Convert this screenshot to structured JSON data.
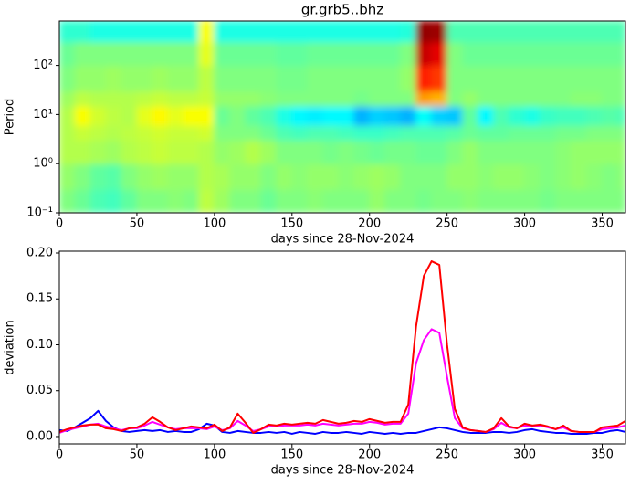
{
  "chart_data": [
    {
      "type": "heatmap",
      "title": "gr.grb5..bhz",
      "xlabel": "days since 28-Nov-2024",
      "ylabel": "Period",
      "colormap": "jet",
      "ylog": true,
      "x_edges": [
        0,
        10,
        20,
        30,
        40,
        50,
        60,
        70,
        80,
        90,
        100,
        110,
        120,
        130,
        140,
        150,
        160,
        170,
        180,
        190,
        200,
        210,
        220,
        230,
        240,
        250,
        260,
        270,
        280,
        290,
        300,
        310,
        320,
        330,
        340,
        350,
        360,
        365
      ],
      "y_edges": [
        0.1,
        0.3,
        1,
        3,
        6,
        15,
        30,
        100,
        300,
        800
      ],
      "values": [
        [
          0.5,
          0.48,
          0.45,
          0.44,
          0.47,
          0.5,
          0.5,
          0.51,
          0.5,
          0.56,
          0.53,
          0.5,
          0.5,
          0.48,
          0.5,
          0.5,
          0.51,
          0.5,
          0.5,
          0.5,
          0.52,
          0.5,
          0.5,
          0.49,
          0.5,
          0.5,
          0.51,
          0.5,
          0.5,
          0.5,
          0.5,
          0.49,
          0.5,
          0.5,
          0.5,
          0.5,
          0.5
        ],
        [
          0.52,
          0.5,
          0.47,
          0.46,
          0.5,
          0.52,
          0.53,
          0.52,
          0.52,
          0.55,
          0.54,
          0.52,
          0.52,
          0.5,
          0.52,
          0.51,
          0.52,
          0.52,
          0.51,
          0.52,
          0.53,
          0.52,
          0.5,
          0.5,
          0.5,
          0.52,
          0.52,
          0.51,
          0.52,
          0.52,
          0.51,
          0.5,
          0.51,
          0.52,
          0.51,
          0.5,
          0.51
        ],
        [
          0.55,
          0.55,
          0.54,
          0.53,
          0.55,
          0.56,
          0.57,
          0.56,
          0.56,
          0.55,
          0.52,
          0.53,
          0.55,
          0.53,
          0.5,
          0.5,
          0.5,
          0.49,
          0.5,
          0.49,
          0.48,
          0.49,
          0.49,
          0.48,
          0.48,
          0.5,
          0.52,
          0.5,
          0.5,
          0.5,
          0.5,
          0.5,
          0.51,
          0.52,
          0.52,
          0.52,
          0.52
        ],
        [
          0.55,
          0.57,
          0.56,
          0.55,
          0.56,
          0.57,
          0.58,
          0.57,
          0.57,
          0.58,
          0.5,
          0.5,
          0.5,
          0.48,
          0.45,
          0.44,
          0.45,
          0.45,
          0.44,
          0.43,
          0.43,
          0.44,
          0.45,
          0.45,
          0.45,
          0.46,
          0.48,
          0.47,
          0.47,
          0.48,
          0.48,
          0.48,
          0.49,
          0.49,
          0.5,
          0.5,
          0.5
        ],
        [
          0.55,
          0.62,
          0.58,
          0.56,
          0.55,
          0.6,
          0.63,
          0.6,
          0.62,
          0.62,
          0.48,
          0.5,
          0.47,
          0.45,
          0.4,
          0.37,
          0.36,
          0.37,
          0.37,
          0.3,
          0.33,
          0.32,
          0.3,
          0.38,
          0.33,
          0.32,
          0.47,
          0.37,
          0.45,
          0.42,
          0.4,
          0.43,
          0.44,
          0.44,
          0.45,
          0.46,
          0.45
        ],
        [
          0.53,
          0.56,
          0.55,
          0.55,
          0.55,
          0.56,
          0.57,
          0.56,
          0.56,
          0.57,
          0.52,
          0.52,
          0.52,
          0.51,
          0.5,
          0.5,
          0.5,
          0.5,
          0.5,
          0.49,
          0.5,
          0.5,
          0.5,
          0.72,
          0.7,
          0.5,
          0.52,
          0.5,
          0.5,
          0.5,
          0.5,
          0.5,
          0.5,
          0.51,
          0.51,
          0.5,
          0.5
        ],
        [
          0.5,
          0.52,
          0.52,
          0.53,
          0.52,
          0.52,
          0.53,
          0.52,
          0.52,
          0.56,
          0.5,
          0.5,
          0.5,
          0.5,
          0.49,
          0.49,
          0.5,
          0.5,
          0.5,
          0.5,
          0.5,
          0.5,
          0.52,
          0.85,
          0.82,
          0.5,
          0.5,
          0.5,
          0.5,
          0.5,
          0.5,
          0.5,
          0.5,
          0.5,
          0.5,
          0.5,
          0.5
        ],
        [
          0.48,
          0.5,
          0.5,
          0.5,
          0.5,
          0.5,
          0.5,
          0.5,
          0.5,
          0.6,
          0.48,
          0.48,
          0.48,
          0.48,
          0.47,
          0.47,
          0.48,
          0.48,
          0.48,
          0.48,
          0.48,
          0.48,
          0.5,
          0.93,
          0.9,
          0.5,
          0.48,
          0.48,
          0.48,
          0.48,
          0.48,
          0.48,
          0.48,
          0.48,
          0.48,
          0.48,
          0.48
        ],
        [
          0.42,
          0.42,
          0.4,
          0.4,
          0.4,
          0.4,
          0.4,
          0.4,
          0.4,
          0.62,
          0.4,
          0.4,
          0.4,
          0.4,
          0.4,
          0.4,
          0.4,
          0.4,
          0.4,
          0.4,
          0.4,
          0.4,
          0.41,
          0.98,
          0.97,
          0.45,
          0.45,
          0.45,
          0.45,
          0.45,
          0.45,
          0.45,
          0.45,
          0.45,
          0.45,
          0.45,
          0.45
        ]
      ],
      "xlim": [
        0,
        365
      ],
      "xticks": [
        0,
        50,
        100,
        150,
        200,
        250,
        300,
        350
      ],
      "ylim": [
        0.1,
        800
      ],
      "yticks": [
        {
          "value": 0.1,
          "label": "10⁻¹"
        },
        {
          "value": 1,
          "label": "10⁰"
        },
        {
          "value": 10,
          "label": "10¹"
        },
        {
          "value": 100,
          "label": "10²"
        }
      ]
    },
    {
      "type": "line",
      "xlabel": "days since 28-Nov-2024",
      "ylabel": "deviation",
      "x": [
        0,
        5,
        10,
        15,
        20,
        25,
        30,
        35,
        40,
        45,
        50,
        55,
        60,
        65,
        70,
        75,
        80,
        85,
        90,
        95,
        100,
        105,
        110,
        115,
        120,
        125,
        130,
        135,
        140,
        145,
        150,
        155,
        160,
        165,
        170,
        175,
        180,
        185,
        190,
        195,
        200,
        205,
        210,
        215,
        220,
        225,
        230,
        235,
        240,
        245,
        250,
        255,
        260,
        265,
        270,
        275,
        280,
        285,
        290,
        295,
        300,
        305,
        310,
        315,
        320,
        325,
        330,
        335,
        340,
        345,
        350,
        355,
        360,
        365
      ],
      "series": [
        {
          "color": "#0000ff",
          "values": [
            0.007,
            0.006,
            0.01,
            0.015,
            0.02,
            0.028,
            0.017,
            0.01,
            0.006,
            0.005,
            0.006,
            0.007,
            0.006,
            0.007,
            0.005,
            0.006,
            0.005,
            0.005,
            0.008,
            0.014,
            0.012,
            0.005,
            0.004,
            0.006,
            0.005,
            0.004,
            0.004,
            0.005,
            0.004,
            0.005,
            0.003,
            0.005,
            0.004,
            0.003,
            0.005,
            0.004,
            0.004,
            0.005,
            0.004,
            0.003,
            0.005,
            0.004,
            0.003,
            0.004,
            0.003,
            0.004,
            0.004,
            0.006,
            0.008,
            0.01,
            0.009,
            0.007,
            0.005,
            0.004,
            0.004,
            0.004,
            0.005,
            0.005,
            0.004,
            0.005,
            0.007,
            0.008,
            0.006,
            0.005,
            0.004,
            0.004,
            0.003,
            0.003,
            0.003,
            0.004,
            0.004,
            0.006,
            0.007,
            0.005
          ]
        },
        {
          "color": "#ff00ff",
          "values": [
            0.004,
            0.007,
            0.009,
            0.011,
            0.013,
            0.014,
            0.011,
            0.009,
            0.007,
            0.009,
            0.009,
            0.012,
            0.016,
            0.013,
            0.01,
            0.008,
            0.009,
            0.009,
            0.009,
            0.008,
            0.011,
            0.007,
            0.009,
            0.017,
            0.012,
            0.006,
            0.008,
            0.011,
            0.011,
            0.012,
            0.012,
            0.012,
            0.013,
            0.012,
            0.014,
            0.013,
            0.012,
            0.013,
            0.014,
            0.014,
            0.016,
            0.015,
            0.013,
            0.014,
            0.014,
            0.025,
            0.08,
            0.105,
            0.117,
            0.113,
            0.065,
            0.02,
            0.009,
            0.007,
            0.006,
            0.005,
            0.008,
            0.015,
            0.01,
            0.009,
            0.012,
            0.011,
            0.012,
            0.01,
            0.008,
            0.01,
            0.006,
            0.005,
            0.005,
            0.005,
            0.008,
            0.009,
            0.01,
            0.012
          ]
        },
        {
          "color": "#ff0000",
          "values": [
            0.005,
            0.008,
            0.01,
            0.012,
            0.013,
            0.013,
            0.009,
            0.008,
            0.006,
            0.009,
            0.01,
            0.014,
            0.021,
            0.016,
            0.01,
            0.007,
            0.009,
            0.011,
            0.01,
            0.009,
            0.013,
            0.006,
            0.01,
            0.025,
            0.015,
            0.004,
            0.008,
            0.013,
            0.012,
            0.014,
            0.013,
            0.014,
            0.015,
            0.014,
            0.018,
            0.016,
            0.014,
            0.015,
            0.017,
            0.016,
            0.019,
            0.017,
            0.015,
            0.016,
            0.016,
            0.035,
            0.12,
            0.175,
            0.191,
            0.187,
            0.1,
            0.03,
            0.01,
            0.007,
            0.006,
            0.005,
            0.009,
            0.02,
            0.011,
            0.009,
            0.014,
            0.012,
            0.013,
            0.011,
            0.008,
            0.012,
            0.006,
            0.005,
            0.005,
            0.005,
            0.01,
            0.011,
            0.012,
            0.017
          ]
        }
      ],
      "xlim": [
        0,
        365
      ],
      "xticks": [
        0,
        50,
        100,
        150,
        200,
        250,
        300,
        350
      ],
      "ylim": [
        -0.008,
        0.202
      ],
      "yticks": [
        {
          "value": 0,
          "label": "0.00"
        },
        {
          "value": 0.05,
          "label": "0.05"
        },
        {
          "value": 0.1,
          "label": "0.10"
        },
        {
          "value": 0.15,
          "label": "0.15"
        },
        {
          "value": 0.2,
          "label": "0.20"
        }
      ]
    }
  ]
}
